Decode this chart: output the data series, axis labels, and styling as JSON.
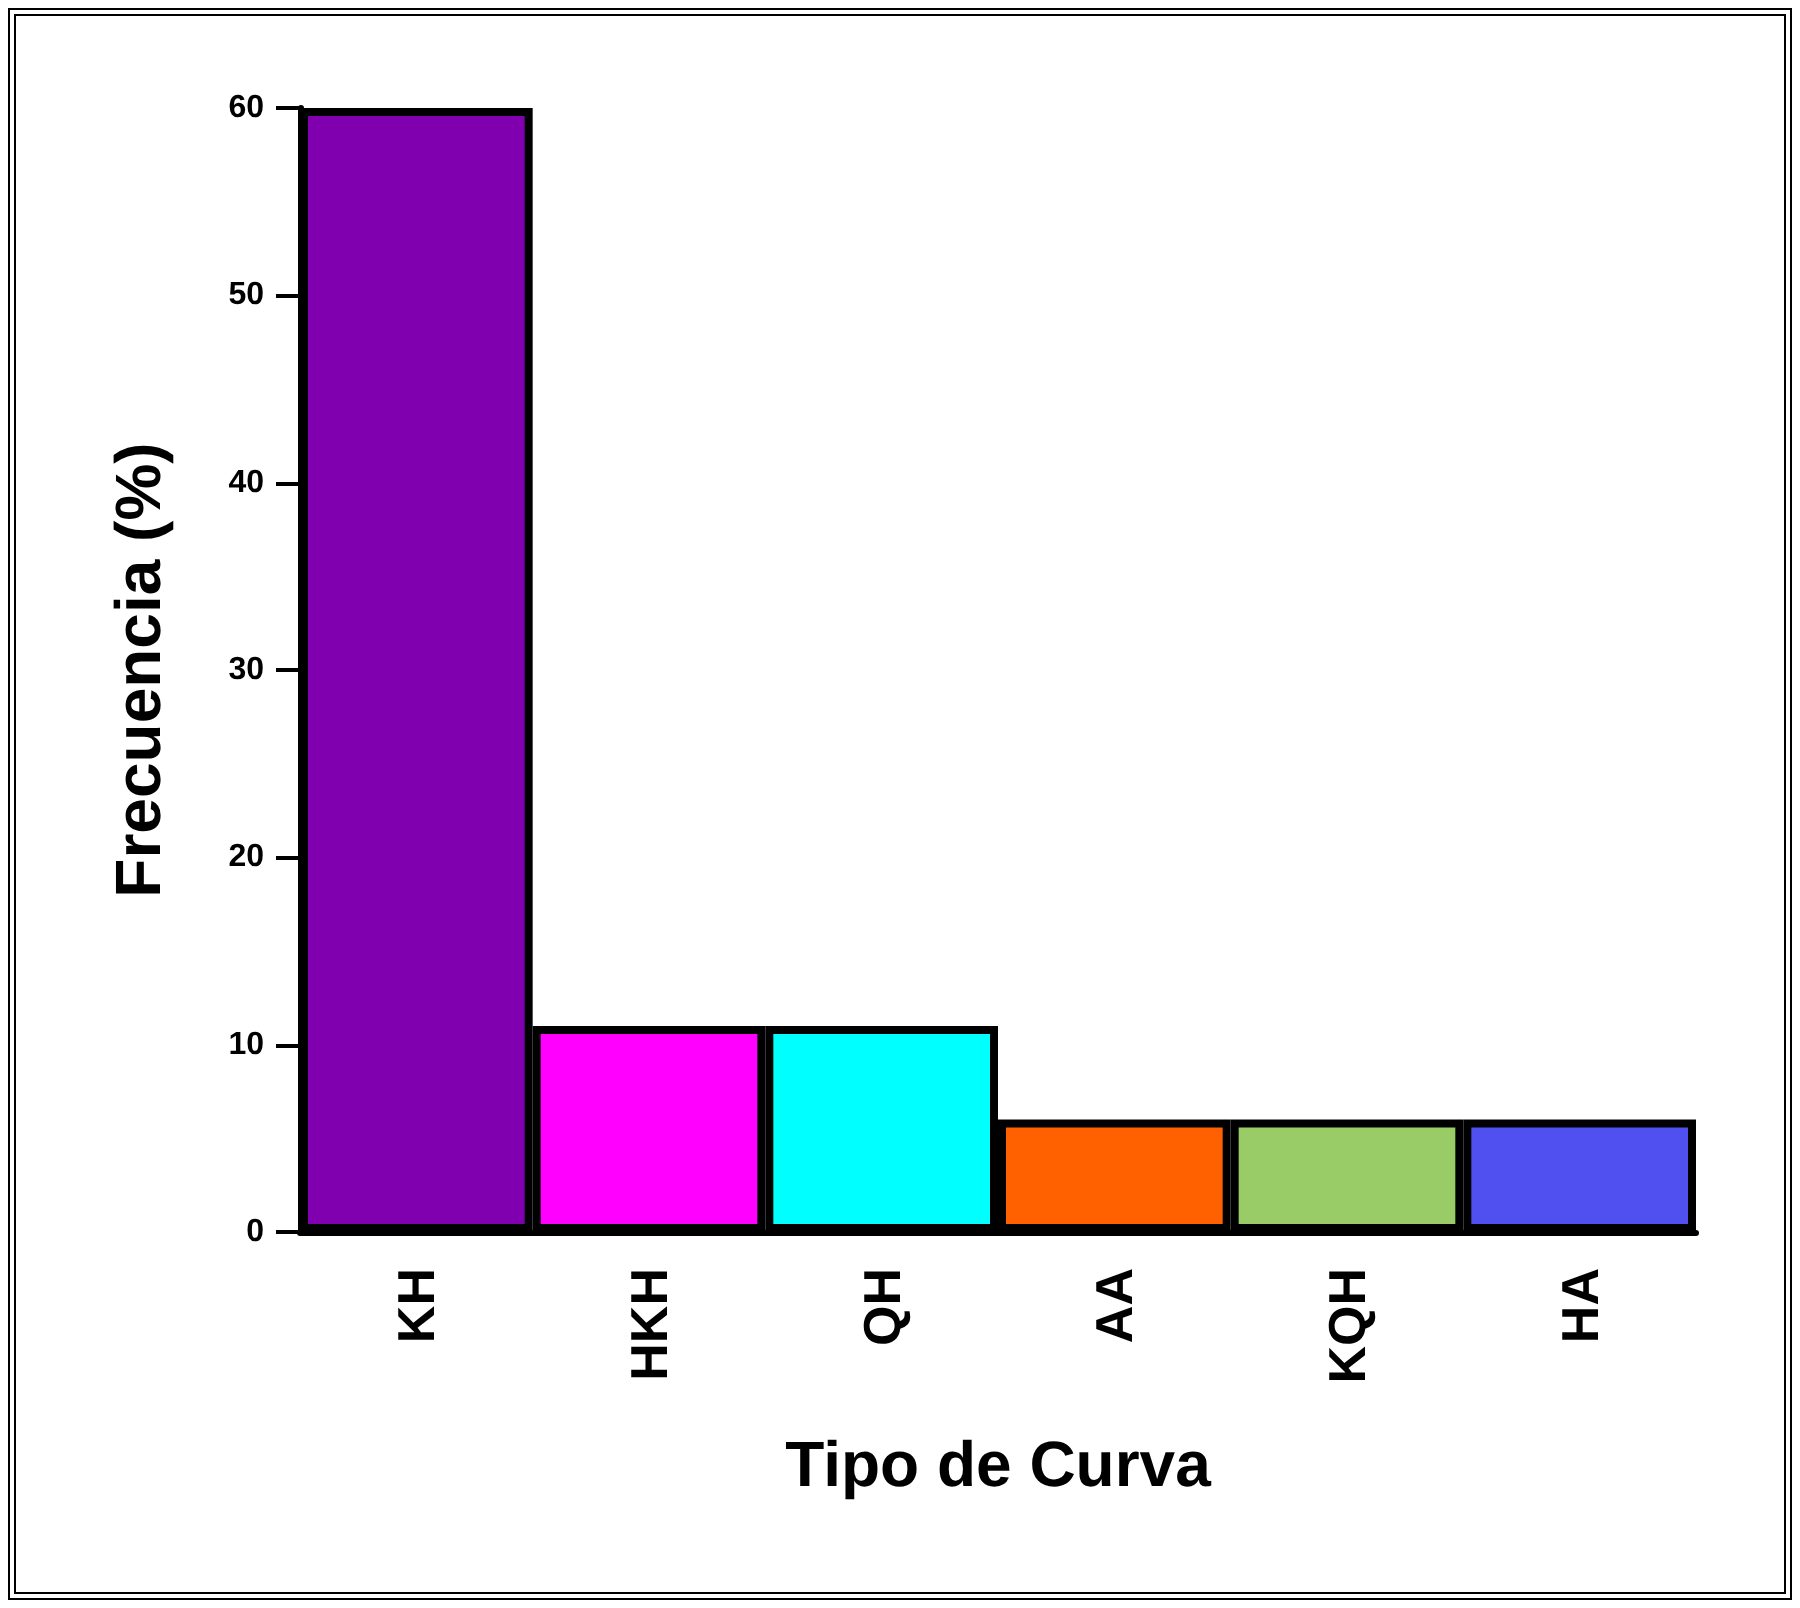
{
  "chart_data": {
    "type": "bar",
    "xlabel": "Tipo de Curva",
    "ylabel": "Frecuencia (%)",
    "categories": [
      "KH",
      "HKH",
      "QH",
      "AA",
      "KQH",
      "HA"
    ],
    "values": [
      60,
      11,
      11,
      6,
      6,
      6
    ],
    "colors": [
      "#8000b0",
      "#ff00ff",
      "#00ffff",
      "#ff6000",
      "#99cc66",
      "#5050f0"
    ],
    "ylim": [
      0,
      60
    ],
    "yticks": [
      0,
      10,
      20,
      30,
      40,
      50,
      60
    ],
    "grid": false
  }
}
